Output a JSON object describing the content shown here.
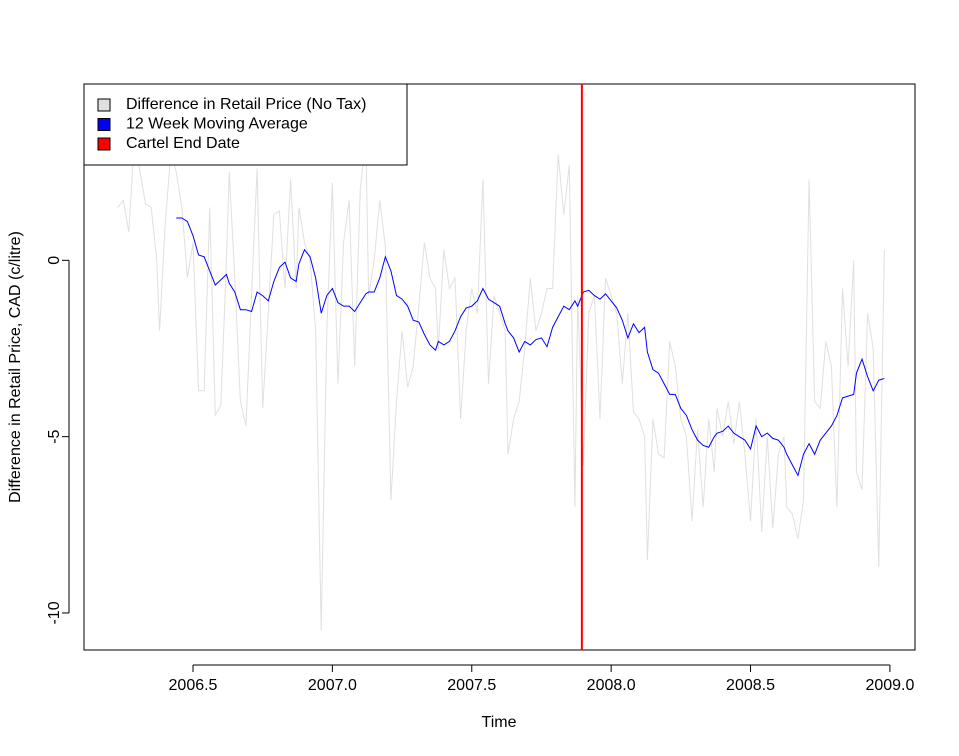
{
  "chart_data": {
    "type": "line",
    "xlabel": "Time",
    "ylabel": "Difference in Retail Price, CAD (c/litre)",
    "xlim": [
      2006.109,
      2009.09
    ],
    "ylim": [
      -11.05,
      5.0
    ],
    "xticks": [
      2006.5,
      {
        "value": 2007,
        "label": "2007.0"
      },
      2007.5,
      {
        "value": 2008,
        "label": "2008.0"
      },
      2008.5,
      {
        "value": 2009,
        "label": "2009.0"
      }
    ],
    "yticks": [
      -10,
      -5,
      0
    ],
    "legend": "topleft",
    "series": [
      {
        "name": "Difference in Retail Price (No Tax)",
        "color": "#e0e0e0",
        "x": [
          2006.23,
          2006.25,
          2006.27,
          2006.29,
          2006.31,
          2006.33,
          2006.35,
          2006.37,
          2006.38,
          2006.4,
          2006.42,
          2006.44,
          2006.46,
          2006.48,
          2006.5,
          2006.52,
          2006.54,
          2006.56,
          2006.58,
          2006.6,
          2006.62,
          2006.63,
          2006.65,
          2006.67,
          2006.69,
          2006.71,
          2006.73,
          2006.75,
          2006.77,
          2006.79,
          2006.81,
          2006.83,
          2006.85,
          2006.87,
          2006.88,
          2006.9,
          2006.92,
          2006.94,
          2006.96,
          2006.98,
          2007.0,
          2007.02,
          2007.04,
          2007.06,
          2007.08,
          2007.1,
          2007.12,
          2007.13,
          2007.15,
          2007.17,
          2007.19,
          2007.21,
          2007.23,
          2007.25,
          2007.27,
          2007.29,
          2007.31,
          2007.33,
          2007.35,
          2007.37,
          2007.38,
          2007.4,
          2007.42,
          2007.44,
          2007.46,
          2007.48,
          2007.5,
          2007.52,
          2007.54,
          2007.56,
          2007.58,
          2007.6,
          2007.62,
          2007.63,
          2007.65,
          2007.67,
          2007.69,
          2007.71,
          2007.73,
          2007.75,
          2007.77,
          2007.79,
          2007.81,
          2007.83,
          2007.85,
          2007.87,
          2007.88,
          2007.9,
          2007.92,
          2007.94,
          2007.96,
          2007.98,
          2008.0,
          2008.02,
          2008.04,
          2008.06,
          2008.08,
          2008.1,
          2008.12,
          2008.13,
          2008.15,
          2008.17,
          2008.19,
          2008.21,
          2008.23,
          2008.25,
          2008.27,
          2008.29,
          2008.31,
          2008.33,
          2008.35,
          2008.37,
          2008.38,
          2008.4,
          2008.42,
          2008.44,
          2008.46,
          2008.48,
          2008.5,
          2008.52,
          2008.54,
          2008.56,
          2008.58,
          2008.6,
          2008.62,
          2008.63,
          2008.65,
          2008.67,
          2008.69,
          2008.71,
          2008.73,
          2008.75,
          2008.77,
          2008.79,
          2008.81,
          2008.83,
          2008.85,
          2008.87,
          2008.88,
          2008.9,
          2008.92,
          2008.94,
          2008.96,
          2008.98
        ],
        "values": [
          1.5,
          1.7,
          0.8,
          3.5,
          2.5,
          1.6,
          1.5,
          0.0,
          -2.0,
          1.0,
          3.0,
          2.5,
          1.5,
          -0.5,
          0.5,
          -3.7,
          -3.7,
          1.5,
          -4.4,
          -4.1,
          0.0,
          2.5,
          -0.5,
          -4.0,
          -4.7,
          -1.0,
          2.6,
          -4.2,
          -1.5,
          1.3,
          1.4,
          -0.8,
          2.3,
          -0.8,
          1.5,
          0.5,
          0.0,
          -2.0,
          -10.5,
          -2.0,
          2.2,
          -3.5,
          0.5,
          1.7,
          -3.0,
          2.0,
          3.5,
          -1.0,
          0.0,
          1.7,
          0.4,
          -6.8,
          -4.0,
          -2.0,
          -3.6,
          -3.0,
          -1.3,
          0.5,
          -0.5,
          -0.8,
          -2.5,
          0.3,
          -0.8,
          -0.5,
          -4.5,
          -2.0,
          -0.8,
          -1.5,
          2.3,
          -3.5,
          -1.0,
          -1.5,
          -2.0,
          -5.5,
          -4.5,
          -4.0,
          -2.5,
          -0.5,
          -2.0,
          -1.5,
          -0.8,
          -0.8,
          3.0,
          1.3,
          2.7,
          -7.0,
          -1.0,
          -5.8,
          -1.5,
          -1.0,
          -4.5,
          -0.5,
          -1.0,
          -1.5,
          -3.5,
          -1.5,
          -4.3,
          -4.5,
          -5.0,
          -8.5,
          -4.5,
          -5.5,
          -5.6,
          -2.3,
          -3.0,
          -4.5,
          -5.0,
          -7.4,
          -4.8,
          -7.0,
          -4.5,
          -6.0,
          -4.2,
          -5.0,
          -4.0,
          -5.2,
          -4.0,
          -5.5,
          -7.4,
          -4.5,
          -7.7,
          -5.0,
          -7.6,
          -5.5,
          -5.0,
          -7.0,
          -7.2,
          -7.9,
          -6.8,
          2.3,
          -4.0,
          -4.2,
          -2.3,
          -3.0,
          -7.0,
          -0.8,
          -3.0,
          0.0,
          -6.0,
          -6.5,
          -1.5,
          -2.5,
          -8.7,
          0.3
        ]
      },
      {
        "name": "12 Week Moving Average",
        "color": "#0000ff",
        "x": [
          2006.44,
          2006.46,
          2006.48,
          2006.5,
          2006.52,
          2006.54,
          2006.56,
          2006.58,
          2006.6,
          2006.62,
          2006.63,
          2006.65,
          2006.67,
          2006.69,
          2006.71,
          2006.73,
          2006.75,
          2006.77,
          2006.79,
          2006.81,
          2006.83,
          2006.85,
          2006.87,
          2006.88,
          2006.9,
          2006.92,
          2006.94,
          2006.96,
          2006.98,
          2007.0,
          2007.02,
          2007.04,
          2007.06,
          2007.08,
          2007.1,
          2007.12,
          2007.13,
          2007.15,
          2007.17,
          2007.19,
          2007.21,
          2007.23,
          2007.25,
          2007.27,
          2007.29,
          2007.31,
          2007.33,
          2007.35,
          2007.37,
          2007.38,
          2007.4,
          2007.42,
          2007.44,
          2007.46,
          2007.48,
          2007.5,
          2007.52,
          2007.54,
          2007.56,
          2007.58,
          2007.6,
          2007.62,
          2007.63,
          2007.65,
          2007.67,
          2007.69,
          2007.71,
          2007.73,
          2007.75,
          2007.77,
          2007.79,
          2007.81,
          2007.83,
          2007.85,
          2007.87,
          2007.88,
          2007.9,
          2007.92,
          2007.94,
          2007.96,
          2007.98,
          2008.0,
          2008.02,
          2008.04,
          2008.06,
          2008.08,
          2008.1,
          2008.12,
          2008.13,
          2008.15,
          2008.17,
          2008.19,
          2008.21,
          2008.23,
          2008.25,
          2008.27,
          2008.29,
          2008.31,
          2008.33,
          2008.35,
          2008.37,
          2008.38,
          2008.4,
          2008.42,
          2008.44,
          2008.46,
          2008.48,
          2008.5,
          2008.52,
          2008.54,
          2008.56,
          2008.58,
          2008.6,
          2008.62,
          2008.63,
          2008.65,
          2008.67,
          2008.69,
          2008.71,
          2008.73,
          2008.75,
          2008.77,
          2008.79,
          2008.81,
          2008.83,
          2008.85,
          2008.87,
          2008.88,
          2008.9,
          2008.92,
          2008.94,
          2008.96,
          2008.98
        ],
        "values": [
          1.2,
          1.2,
          1.1,
          0.7,
          0.15,
          0.1,
          -0.3,
          -0.7,
          -0.55,
          -0.4,
          -0.65,
          -0.9,
          -1.4,
          -1.4,
          -1.45,
          -0.9,
          -1.0,
          -1.15,
          -0.6,
          -0.2,
          -0.05,
          -0.5,
          -0.6,
          -0.1,
          0.3,
          0.1,
          -0.5,
          -1.5,
          -1.0,
          -0.8,
          -1.2,
          -1.3,
          -1.3,
          -1.45,
          -1.2,
          -0.95,
          -0.9,
          -0.9,
          -0.5,
          0.1,
          -0.3,
          -1.0,
          -1.1,
          -1.3,
          -1.7,
          -1.75,
          -2.1,
          -2.4,
          -2.55,
          -2.3,
          -2.4,
          -2.3,
          -2.0,
          -1.6,
          -1.35,
          -1.3,
          -1.15,
          -0.8,
          -1.1,
          -1.2,
          -1.3,
          -1.8,
          -2.0,
          -2.2,
          -2.6,
          -2.3,
          -2.4,
          -2.25,
          -2.2,
          -2.45,
          -1.9,
          -1.6,
          -1.3,
          -1.4,
          -1.15,
          -1.3,
          -0.9,
          -0.85,
          -1.0,
          -1.1,
          -0.95,
          -1.15,
          -1.35,
          -1.7,
          -2.2,
          -1.8,
          -2.05,
          -1.9,
          -2.6,
          -3.1,
          -3.2,
          -3.5,
          -3.8,
          -3.8,
          -4.2,
          -4.4,
          -4.8,
          -5.1,
          -5.25,
          -5.3,
          -5.0,
          -4.9,
          -4.85,
          -4.7,
          -4.9,
          -5.0,
          -5.1,
          -5.35,
          -4.7,
          -5.0,
          -4.9,
          -5.05,
          -5.1,
          -5.3,
          -5.5,
          -5.8,
          -6.1,
          -5.5,
          -5.2,
          -5.5,
          -5.1,
          -4.9,
          -4.7,
          -4.4,
          -3.9,
          -3.85,
          -3.8,
          -3.2,
          -2.8,
          -3.3,
          -3.7,
          -3.4,
          -3.35
        ]
      }
    ],
    "vlines": [
      {
        "name": "Cartel End Date",
        "x": 2007.895,
        "color": "#ff0000"
      }
    ]
  }
}
